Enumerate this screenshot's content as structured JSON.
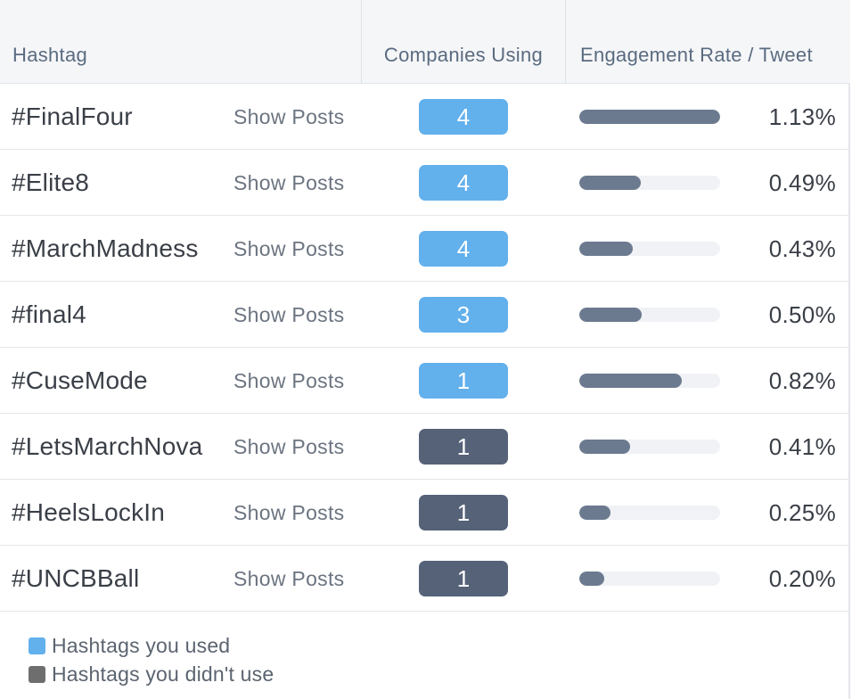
{
  "columns": {
    "hashtag": "Hashtag",
    "companies": "Companies Using",
    "engagement": "Engagement Rate / Tweet"
  },
  "show_posts_label": "Show Posts",
  "rows": [
    {
      "tag": "#FinalFour",
      "companies": "4",
      "used": true,
      "rate": "1.13%",
      "rate_value": 1.13
    },
    {
      "tag": "#Elite8",
      "companies": "4",
      "used": true,
      "rate": "0.49%",
      "rate_value": 0.49
    },
    {
      "tag": "#MarchMadness",
      "companies": "4",
      "used": true,
      "rate": "0.43%",
      "rate_value": 0.43
    },
    {
      "tag": "#final4",
      "companies": "3",
      "used": true,
      "rate": "0.50%",
      "rate_value": 0.5
    },
    {
      "tag": "#CuseMode",
      "companies": "1",
      "used": true,
      "rate": "0.82%",
      "rate_value": 0.82
    },
    {
      "tag": "#LetsMarchNova",
      "companies": "1",
      "used": false,
      "rate": "0.41%",
      "rate_value": 0.41
    },
    {
      "tag": "#HeelsLockIn",
      "companies": "1",
      "used": false,
      "rate": "0.25%",
      "rate_value": 0.25
    },
    {
      "tag": "#UNCBBall",
      "companies": "1",
      "used": false,
      "rate": "0.20%",
      "rate_value": 0.2
    }
  ],
  "bar_max_rate": 1.13,
  "legend": [
    {
      "label": "Hashtags you used",
      "color": "#62b0ec"
    },
    {
      "label": "Hashtags you didn't use",
      "color": "#6e6e6e"
    }
  ],
  "colors": {
    "used_badge": "#62b0ec",
    "unused_badge": "#556278",
    "bar_fill": "#6b7a8f",
    "bar_track": "#f0f2f5"
  }
}
